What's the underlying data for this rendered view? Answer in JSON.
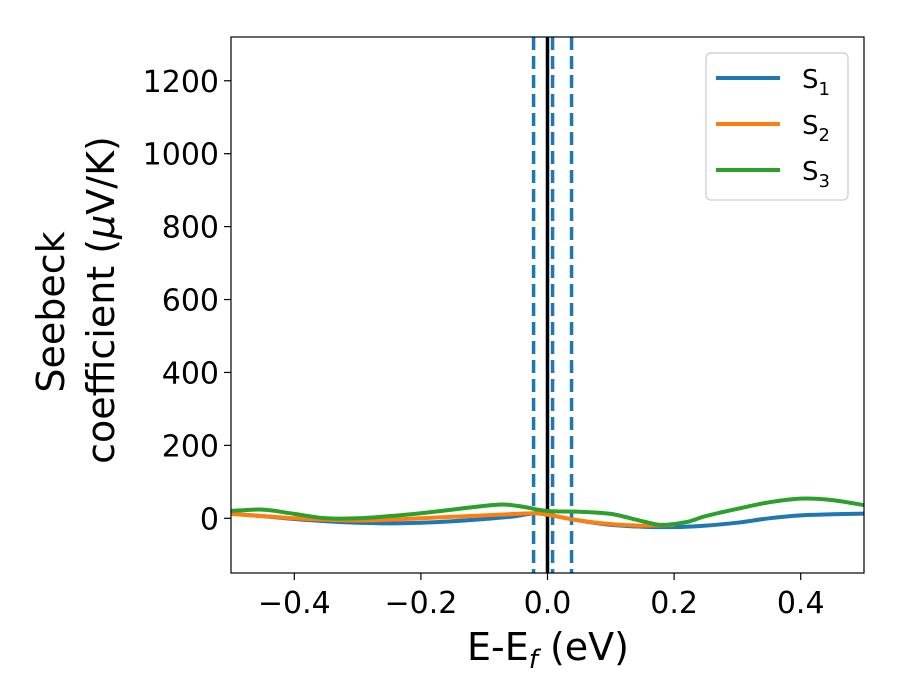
{
  "chart_data": {
    "type": "line",
    "xlabel": "E-E",
    "xlabel_sub": "f",
    "xlabel_unit": " (eV)",
    "ylabel_line1": "Seebeck",
    "ylabel_line2": "coefficient  (",
    "ylabel_mu": "μ",
    "ylabel_unit": "V/K)",
    "xlim": [
      -0.5,
      0.5
    ],
    "ylim": [
      -150,
      1320
    ],
    "xticks": [
      -0.4,
      -0.2,
      0.0,
      0.2,
      0.4
    ],
    "xtick_labels": [
      "−0.4",
      "−0.2",
      "0.0",
      "0.2",
      "0.4"
    ],
    "yticks": [
      0,
      200,
      400,
      600,
      800,
      1000,
      1200
    ],
    "ytick_labels": [
      "0",
      "200",
      "400",
      "600",
      "800",
      "1000",
      "1200"
    ],
    "grid": false,
    "legend_position": "top-right",
    "vlines": [
      {
        "x": 0.0,
        "style": "solid",
        "color": "#000000"
      },
      {
        "x": -0.022,
        "style": "dashed",
        "color": "#1f77b4"
      },
      {
        "x": 0.008,
        "style": "dashed",
        "color": "#1f77b4"
      },
      {
        "x": 0.038,
        "style": "dashed",
        "color": "#1f77b4"
      }
    ],
    "series": [
      {
        "name": "S",
        "sub": "1",
        "color": "#1f77b4",
        "x": [
          -0.5,
          -0.45,
          -0.4,
          -0.35,
          -0.3,
          -0.25,
          -0.2,
          -0.15,
          -0.1,
          -0.05,
          -0.02,
          0.0,
          0.05,
          0.1,
          0.15,
          0.2,
          0.25,
          0.3,
          0.35,
          0.4,
          0.45,
          0.5
        ],
        "y": [
          12,
          6,
          -2,
          -8,
          -12,
          -14,
          -12,
          -8,
          -2,
          6,
          14,
          10,
          -6,
          -18,
          -23,
          -24,
          -20,
          -12,
          0,
          8,
          11,
          13
        ]
      },
      {
        "name": "S",
        "sub": "2",
        "color": "#ff7f0e",
        "x": [
          -0.5,
          -0.45,
          -0.4,
          -0.35,
          -0.3,
          -0.25,
          -0.2,
          -0.15,
          -0.1,
          -0.05,
          -0.02,
          0.0,
          0.05,
          0.1,
          0.15,
          0.2
        ],
        "y": [
          12,
          6,
          0,
          -4,
          -6,
          -4,
          0,
          4,
          8,
          12,
          14,
          10,
          -6,
          -16,
          -20,
          -18
        ]
      },
      {
        "name": "S",
        "sub": "3",
        "color": "#2ca02c",
        "x": [
          -0.5,
          -0.45,
          -0.4,
          -0.35,
          -0.3,
          -0.25,
          -0.2,
          -0.15,
          -0.1,
          -0.07,
          -0.04,
          0.0,
          0.05,
          0.1,
          0.15,
          0.18,
          0.22,
          0.25,
          0.3,
          0.35,
          0.4,
          0.45,
          0.5
        ],
        "y": [
          20,
          24,
          12,
          0,
          0,
          6,
          14,
          24,
          34,
          38,
          32,
          20,
          18,
          12,
          -8,
          -18,
          -10,
          6,
          26,
          44,
          54,
          50,
          36
        ]
      }
    ]
  }
}
